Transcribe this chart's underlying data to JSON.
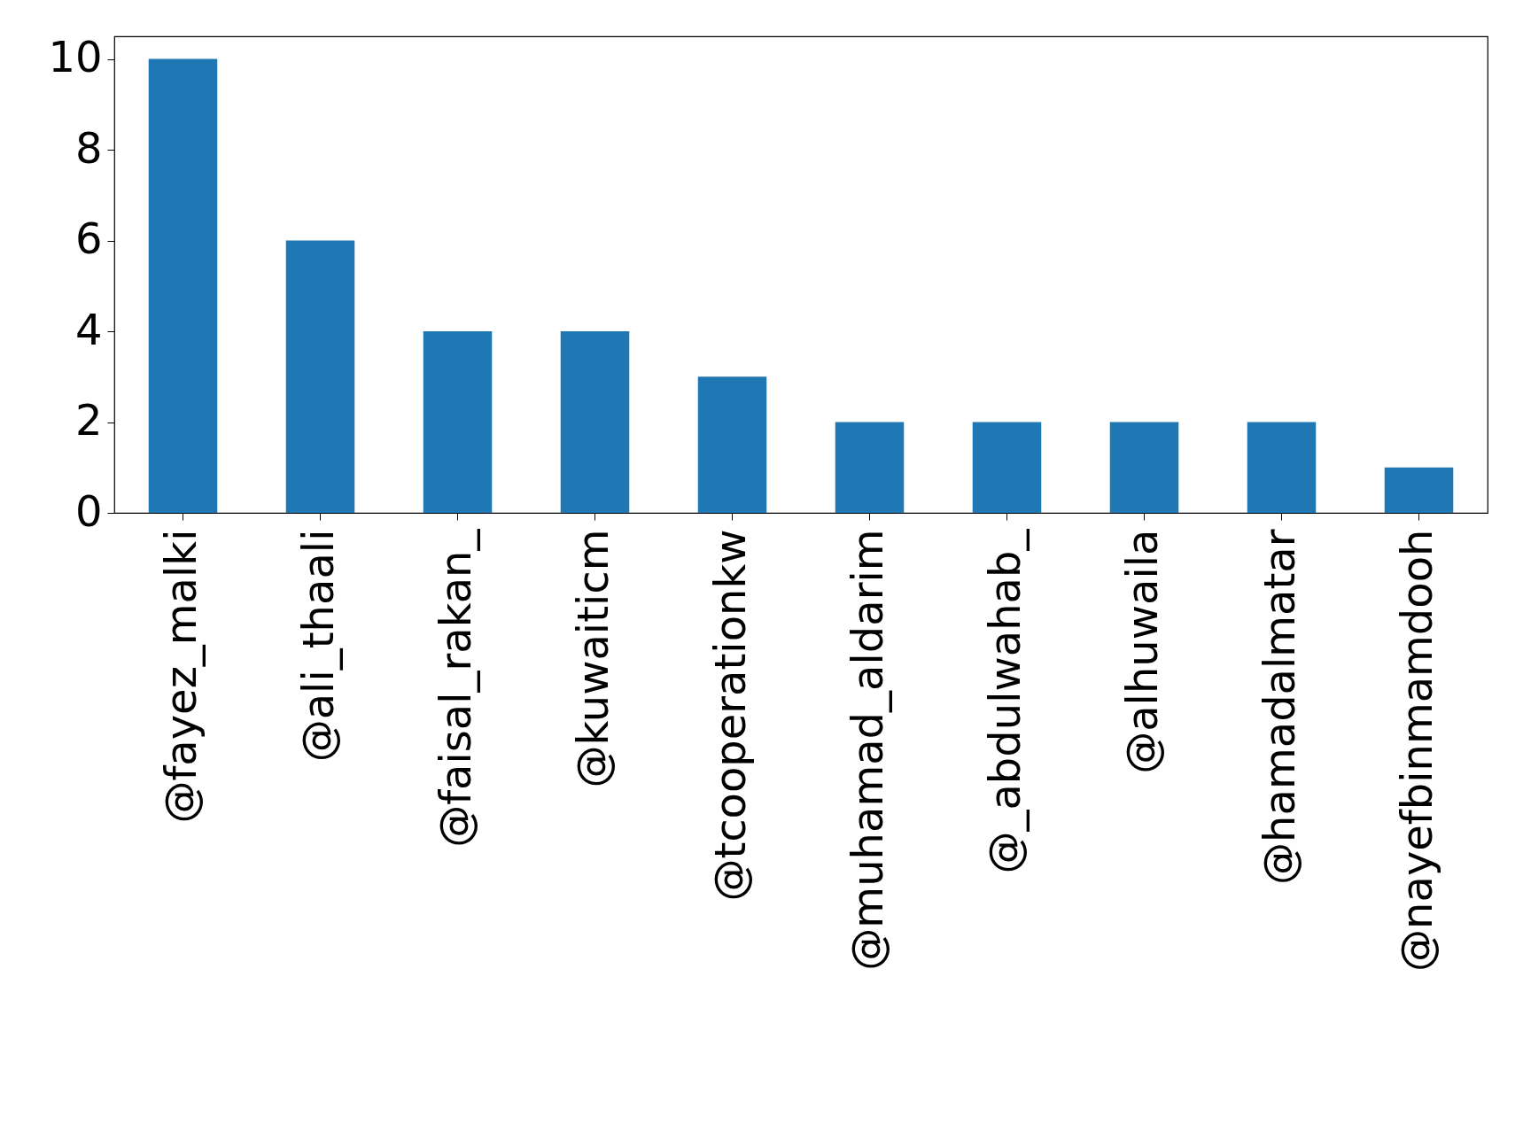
{
  "chart_data": {
    "type": "bar",
    "categories": [
      "@fayez_malki",
      "@ali_thaali",
      "@faisal_rakan_",
      "@kuwaiticm",
      "@tcooperationkw",
      "@muhamad_aldarim",
      "@_abdulwahab_",
      "@alhuwaila",
      "@hamadalmatar",
      "@nayefbinmamdooh"
    ],
    "values": [
      10,
      6,
      4,
      4,
      3,
      2,
      2,
      2,
      2,
      1
    ],
    "color": "#1f77b4",
    "ylim": [
      0,
      10.5
    ],
    "yticks": [
      0,
      2,
      4,
      6,
      8,
      10
    ],
    "grid": false
  }
}
